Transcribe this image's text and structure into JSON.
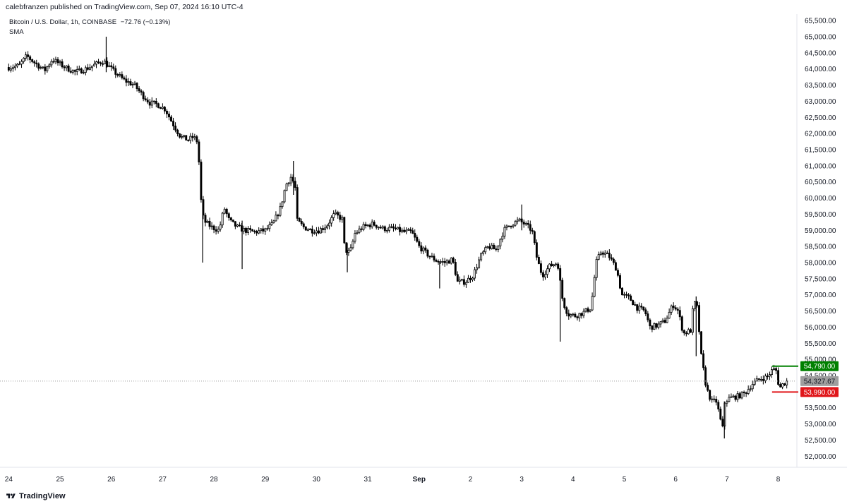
{
  "header": {
    "published": "calebfranzen published on TradingView.com, Sep 07, 2024 16:10 UTC-4",
    "symbol": "Bitcoin / U.S. Dollar, 1h, COINBASE",
    "change": "−72.76 (−0.13%)",
    "indicator": "SMA"
  },
  "footer": {
    "brand": "TradingView",
    "logo_icon": "tradingview-logo-icon"
  },
  "chart_data": {
    "type": "candlestick",
    "title": "Bitcoin / U.S. Dollar, 1h, COINBASE",
    "ylim": [
      51700,
      65700
    ],
    "y_ticks": [
      52000,
      52500,
      53000,
      53500,
      54000,
      54500,
      55000,
      55500,
      56000,
      56500,
      57000,
      57500,
      58000,
      58500,
      59000,
      59500,
      60000,
      60500,
      61000,
      61500,
      62000,
      62500,
      63000,
      63500,
      64000,
      64500,
      65000,
      65500
    ],
    "y_tick_labels": [
      "52,000.00",
      "52,500.00",
      "53,000.00",
      "53,500.00",
      "54,000.00",
      "54,500.00",
      "55,000.00",
      "55,500.00",
      "56,000.00",
      "56,500.00",
      "57,000.00",
      "57,500.00",
      "58,000.00",
      "58,500.00",
      "59,000.00",
      "59,500.00",
      "60,000.00",
      "60,500.00",
      "61,000.00",
      "61,500.00",
      "62,000.00",
      "62,500.00",
      "63,000.00",
      "63,500.00",
      "64,000.00",
      "64,500.00",
      "65,000.00",
      "65,500.00"
    ],
    "x_tick_labels": [
      "24",
      "25",
      "26",
      "27",
      "28",
      "29",
      "30",
      "31",
      "Sep",
      "2",
      "3",
      "4",
      "5",
      "6",
      "7",
      "8"
    ],
    "xlim_days": [
      -0.17,
      15.35
    ],
    "grid": false,
    "price_path": [
      {
        "day": 0.0,
        "price": 64050
      },
      {
        "day": 0.2,
        "price": 64100
      },
      {
        "day": 0.35,
        "price": 64400
      },
      {
        "day": 0.5,
        "price": 64200
      },
      {
        "day": 0.7,
        "price": 63950
      },
      {
        "day": 0.85,
        "price": 64300
      },
      {
        "day": 1.0,
        "price": 64150
      },
      {
        "day": 1.1,
        "price": 64050
      },
      {
        "day": 1.3,
        "price": 63900
      },
      {
        "day": 1.5,
        "price": 64000
      },
      {
        "day": 1.7,
        "price": 64150
      },
      {
        "day": 1.85,
        "price": 64250
      },
      {
        "day": 2.0,
        "price": 64000
      },
      {
        "day": 2.1,
        "price": 63850
      },
      {
        "day": 2.25,
        "price": 63650
      },
      {
        "day": 2.45,
        "price": 63500
      },
      {
        "day": 2.6,
        "price": 63200
      },
      {
        "day": 2.75,
        "price": 62950
      },
      {
        "day": 2.9,
        "price": 62900
      },
      {
        "day": 3.05,
        "price": 62750
      },
      {
        "day": 3.2,
        "price": 62300
      },
      {
        "day": 3.35,
        "price": 61900
      },
      {
        "day": 3.5,
        "price": 61800
      },
      {
        "day": 3.6,
        "price": 61900
      },
      {
        "day": 3.7,
        "price": 61700
      },
      {
        "day": 3.72,
        "price": 60300
      },
      {
        "day": 3.8,
        "price": 59300
      },
      {
        "day": 3.95,
        "price": 59100
      },
      {
        "day": 4.1,
        "price": 59000
      },
      {
        "day": 4.2,
        "price": 59700
      },
      {
        "day": 4.3,
        "price": 59300
      },
      {
        "day": 4.45,
        "price": 59100
      },
      {
        "day": 4.6,
        "price": 59000
      },
      {
        "day": 4.8,
        "price": 58950
      },
      {
        "day": 5.0,
        "price": 59000
      },
      {
        "day": 5.15,
        "price": 59200
      },
      {
        "day": 5.3,
        "price": 59700
      },
      {
        "day": 5.4,
        "price": 60400
      },
      {
        "day": 5.5,
        "price": 60650
      },
      {
        "day": 5.58,
        "price": 60400
      },
      {
        "day": 5.62,
        "price": 59300
      },
      {
        "day": 5.75,
        "price": 59100
      },
      {
        "day": 5.9,
        "price": 59000
      },
      {
        "day": 6.05,
        "price": 59000
      },
      {
        "day": 6.2,
        "price": 59150
      },
      {
        "day": 6.35,
        "price": 59500
      },
      {
        "day": 6.5,
        "price": 59350
      },
      {
        "day": 6.55,
        "price": 58400
      },
      {
        "day": 6.65,
        "price": 58300
      },
      {
        "day": 6.75,
        "price": 58900
      },
      {
        "day": 6.9,
        "price": 59100
      },
      {
        "day": 7.1,
        "price": 59200
      },
      {
        "day": 7.3,
        "price": 59050
      },
      {
        "day": 7.5,
        "price": 59050
      },
      {
        "day": 7.7,
        "price": 58950
      },
      {
        "day": 7.85,
        "price": 58950
      },
      {
        "day": 8.0,
        "price": 58500
      },
      {
        "day": 8.2,
        "price": 58200
      },
      {
        "day": 8.35,
        "price": 58050
      },
      {
        "day": 8.5,
        "price": 58000
      },
      {
        "day": 8.65,
        "price": 58100
      },
      {
        "day": 8.75,
        "price": 57400
      },
      {
        "day": 8.9,
        "price": 57400
      },
      {
        "day": 9.05,
        "price": 57600
      },
      {
        "day": 9.2,
        "price": 58200
      },
      {
        "day": 9.35,
        "price": 58500
      },
      {
        "day": 9.5,
        "price": 58400
      },
      {
        "day": 9.65,
        "price": 59000
      },
      {
        "day": 9.8,
        "price": 59200
      },
      {
        "day": 9.95,
        "price": 59300
      },
      {
        "day": 10.05,
        "price": 59200
      },
      {
        "day": 10.2,
        "price": 59000
      },
      {
        "day": 10.3,
        "price": 58100
      },
      {
        "day": 10.4,
        "price": 57600
      },
      {
        "day": 10.55,
        "price": 57900
      },
      {
        "day": 10.7,
        "price": 58000
      },
      {
        "day": 10.8,
        "price": 56800
      },
      {
        "day": 10.9,
        "price": 56400
      },
      {
        "day": 11.05,
        "price": 56350
      },
      {
        "day": 11.2,
        "price": 56450
      },
      {
        "day": 11.35,
        "price": 56600
      },
      {
        "day": 11.45,
        "price": 58000
      },
      {
        "day": 11.55,
        "price": 58350
      },
      {
        "day": 11.7,
        "price": 58200
      },
      {
        "day": 11.85,
        "price": 57800
      },
      {
        "day": 11.95,
        "price": 57000
      },
      {
        "day": 12.1,
        "price": 56900
      },
      {
        "day": 12.25,
        "price": 56600
      },
      {
        "day": 12.4,
        "price": 56500
      },
      {
        "day": 12.5,
        "price": 56000
      },
      {
        "day": 12.65,
        "price": 56050
      },
      {
        "day": 12.8,
        "price": 56200
      },
      {
        "day": 12.95,
        "price": 56700
      },
      {
        "day": 13.05,
        "price": 56500
      },
      {
        "day": 13.15,
        "price": 55800
      },
      {
        "day": 13.3,
        "price": 55900
      },
      {
        "day": 13.35,
        "price": 56800
      },
      {
        "day": 13.42,
        "price": 56600
      },
      {
        "day": 13.5,
        "price": 55100
      },
      {
        "day": 13.6,
        "price": 54100
      },
      {
        "day": 13.7,
        "price": 53700
      },
      {
        "day": 13.8,
        "price": 53700
      },
      {
        "day": 13.86,
        "price": 53200
      },
      {
        "day": 13.92,
        "price": 52850
      },
      {
        "day": 13.96,
        "price": 53700
      },
      {
        "day": 14.05,
        "price": 53800
      },
      {
        "day": 14.2,
        "price": 53850
      },
      {
        "day": 14.35,
        "price": 53950
      },
      {
        "day": 14.5,
        "price": 54250
      },
      {
        "day": 14.65,
        "price": 54400
      },
      {
        "day": 14.78,
        "price": 54450
      },
      {
        "day": 14.9,
        "price": 54700
      },
      {
        "day": 14.96,
        "price": 54650
      },
      {
        "day": 15.02,
        "price": 54100
      },
      {
        "day": 15.1,
        "price": 54250
      },
      {
        "day": 15.18,
        "price": 54327.67
      }
    ],
    "spikes": [
      {
        "day": 1.9,
        "high": 65000,
        "low": 63900
      },
      {
        "day": 3.78,
        "high": 59500,
        "low": 58000
      },
      {
        "day": 4.55,
        "high": 59300,
        "low": 57800
      },
      {
        "day": 5.55,
        "high": 61150,
        "low": 60100
      },
      {
        "day": 6.6,
        "high": 58600,
        "low": 57700
      },
      {
        "day": 8.4,
        "high": 58000,
        "low": 57200
      },
      {
        "day": 10.0,
        "high": 59800,
        "low": 59000
      },
      {
        "day": 10.75,
        "high": 57600,
        "low": 55550
      },
      {
        "day": 13.4,
        "high": 56950,
        "low": 55100
      },
      {
        "day": 13.95,
        "high": 53700,
        "low": 52550
      }
    ],
    "current_price": 54327.67,
    "current_price_label": "54,327.67",
    "levels": [
      {
        "price": 54790,
        "label": "54,790.00",
        "color": "#008000",
        "start_day": 14.88
      },
      {
        "price": 53990,
        "label": "53,990.00",
        "color": "#e0161a",
        "start_day": 14.88
      }
    ],
    "colors": {
      "candle": "#000000",
      "last_price": "#9e9e9e"
    }
  }
}
